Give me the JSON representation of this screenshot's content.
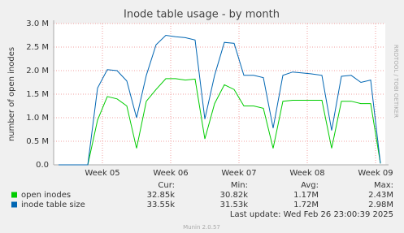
{
  "chart_data": {
    "type": "line",
    "title": "Inode table usage - by month",
    "y_label": "number of open inodes",
    "watermark": "RRDTOOL / TOBI OETIKER",
    "x": [
      0.5,
      1.5,
      2.5,
      3.5,
      4.5,
      5.5,
      6.5,
      7.5,
      8.5,
      9.5,
      10.5,
      11.5,
      12.5,
      13.5,
      14.5,
      15.5,
      16.5,
      17.5,
      18.5,
      19.5,
      20.5,
      21.5,
      22.5,
      23.5,
      24.5,
      25.5,
      26.5,
      27.5,
      28.5,
      29.5,
      30.5,
      31.5,
      32.5,
      33.5
    ],
    "xlim": [
      0,
      34
    ],
    "xticks": [
      {
        "value": 5,
        "label": "Week 05"
      },
      {
        "value": 12,
        "label": "Week 06"
      },
      {
        "value": 19,
        "label": "Week 07"
      },
      {
        "value": 26,
        "label": "Week 08"
      },
      {
        "value": 33,
        "label": "Week 09"
      }
    ],
    "ylim": [
      0,
      3000000
    ],
    "yticks": [
      {
        "value": 0,
        "label": "0.0"
      },
      {
        "value": 500000,
        "label": "0.5 M"
      },
      {
        "value": 1000000,
        "label": "1.0 M"
      },
      {
        "value": 1500000,
        "label": "1.5 M"
      },
      {
        "value": 2000000,
        "label": "2.0 M"
      },
      {
        "value": 2500000,
        "label": "2.5 M"
      },
      {
        "value": 3000000,
        "label": "3.0 M"
      }
    ],
    "grid": true,
    "stat_headers": [
      "Cur:",
      "Min:",
      "Avg:",
      "Max:"
    ],
    "series": [
      {
        "name": "open inodes",
        "color": "#00cc00",
        "stats": [
          "32.85k",
          "30.82k",
          "1.17M",
          "2.43M"
        ],
        "values": [
          0,
          0,
          0,
          0,
          950000,
          1450000,
          1400000,
          1250000,
          350000,
          1350000,
          1600000,
          1830000,
          1830000,
          1800000,
          1820000,
          550000,
          1300000,
          1700000,
          1600000,
          1250000,
          1250000,
          1200000,
          350000,
          1350000,
          1370000,
          1370000,
          1370000,
          1370000,
          350000,
          1350000,
          1350000,
          1300000,
          1300000,
          30000
        ]
      },
      {
        "name": "inode table size",
        "color": "#0066b3",
        "stats": [
          "33.55k",
          "31.53k",
          "1.72M",
          "2.98M"
        ],
        "values": [
          0,
          0,
          0,
          0,
          1630000,
          2020000,
          2000000,
          1780000,
          1000000,
          1900000,
          2550000,
          2750000,
          2720000,
          2700000,
          2650000,
          970000,
          1900000,
          2600000,
          2580000,
          1900000,
          1900000,
          1850000,
          780000,
          1900000,
          1970000,
          1950000,
          1930000,
          1900000,
          730000,
          1880000,
          1900000,
          1750000,
          1800000,
          30000
        ]
      }
    ],
    "last_update": "Last update: Wed Feb 26 23:00:39 2025",
    "footer": "Munin 2.0.57"
  }
}
